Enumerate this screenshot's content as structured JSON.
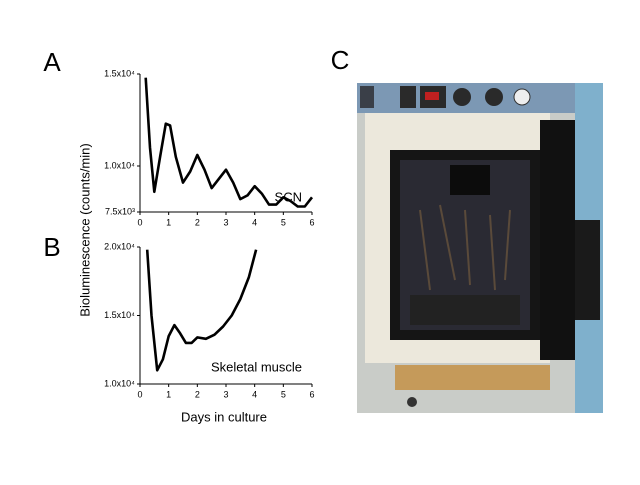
{
  "figure": {
    "panel_labels": [
      "A",
      "B",
      "C"
    ],
    "ylabel": "Bioluminescence (counts/min)",
    "xlabel": "Days in culture"
  },
  "chart_data": [
    {
      "type": "line",
      "x": [
        0.2,
        0.35,
        0.5,
        0.7,
        0.9,
        1.05,
        1.25,
        1.5,
        1.75,
        2,
        2.25,
        2.5,
        2.75,
        3,
        3.25,
        3.5,
        3.75,
        4,
        4.25,
        4.5,
        4.75,
        5,
        5.25,
        5.5,
        5.75,
        6
      ],
      "series": [
        {
          "name": "SCN",
          "color": "#000000",
          "values": [
            14800,
            11000,
            8600,
            10500,
            12300,
            12200,
            10500,
            9100,
            9700,
            10600,
            9800,
            8800,
            9300,
            9800,
            9100,
            8200,
            8400,
            8900,
            8500,
            7900,
            7900,
            8300,
            8100,
            7800,
            7800,
            8300
          ]
        }
      ],
      "xlim": [
        0,
        6
      ],
      "xticks": [
        0,
        1,
        2,
        3,
        4,
        5,
        6
      ],
      "ylim": [
        7500,
        15000
      ],
      "yticks": [
        {
          "value": 7500,
          "label": "7.5x10³"
        },
        {
          "value": 10000,
          "label": "1.0x10⁴"
        },
        {
          "value": 15000,
          "label": "1.5x10⁴"
        }
      ],
      "grid": false
    },
    {
      "type": "line",
      "x": [
        0.25,
        0.4,
        0.6,
        0.8,
        1.0,
        1.2,
        1.4,
        1.6,
        1.8,
        2.0,
        2.3,
        2.6,
        2.9,
        3.2,
        3.5,
        3.8,
        4.05
      ],
      "series": [
        {
          "name": "Skeletal muscle",
          "color": "#000000",
          "values": [
            19800,
            15000,
            11000,
            11800,
            13500,
            14300,
            13700,
            13000,
            13000,
            13400,
            13300,
            13600,
            14200,
            15000,
            16200,
            17800,
            19800
          ]
        }
      ],
      "xlim": [
        0,
        6
      ],
      "xticks": [
        0,
        1,
        2,
        3,
        4,
        5,
        6
      ],
      "ylim": [
        10000,
        20000
      ],
      "yticks": [
        {
          "value": 10000,
          "label": "1.0x10⁴"
        },
        {
          "value": 15000,
          "label": "1.5x10⁴"
        },
        {
          "value": 20000,
          "label": "2.0x10⁴"
        }
      ],
      "grid": false
    }
  ]
}
